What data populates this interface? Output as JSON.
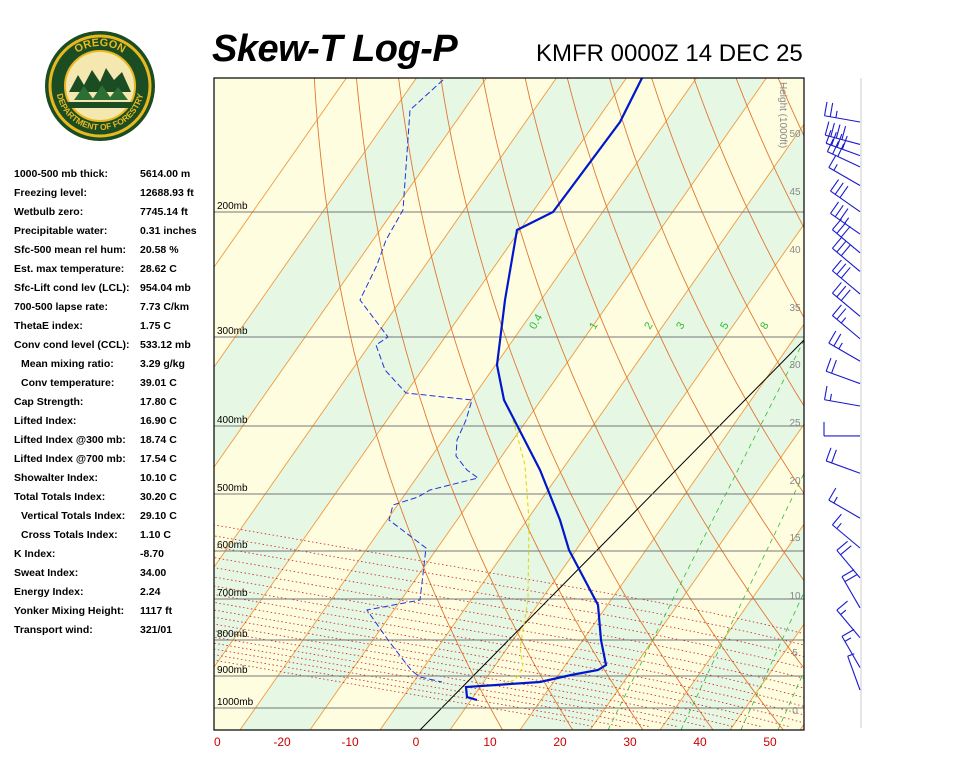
{
  "header": {
    "title": "Skew-T Log-P",
    "subtitle": "KMFR 0000Z 14 DEC 25"
  },
  "logo": {
    "text_top": "OREGON",
    "text_bottom": "DEPARTMENT OF FORESTRY"
  },
  "indices": [
    {
      "label": "1000-500 mb thick:",
      "value": "5614.00 m",
      "indent": false
    },
    {
      "label": "Freezing level:",
      "value": "12688.93 ft",
      "indent": false
    },
    {
      "label": "Wetbulb zero:",
      "value": "7745.14 ft",
      "indent": false
    },
    {
      "label": "Precipitable water:",
      "value": "0.31 inches",
      "indent": false
    },
    {
      "label": "Sfc-500 mean rel hum:",
      "value": "20.58 %",
      "indent": false
    },
    {
      "label": "Est. max temperature:",
      "value": "28.62 C",
      "indent": false
    },
    {
      "label": "Sfc-Lift cond lev (LCL):",
      "value": "954.04 mb",
      "indent": false
    },
    {
      "label": "700-500 lapse rate:",
      "value": "7.73 C/km",
      "indent": false
    },
    {
      "label": "ThetaE index:",
      "value": "1.75 C",
      "indent": false
    },
    {
      "label": "Conv cond level (CCL):",
      "value": "533.12 mb",
      "indent": false
    },
    {
      "label": "Mean mixing ratio:",
      "value": "3.29 g/kg",
      "indent": true
    },
    {
      "label": "Conv temperature:",
      "value": "39.01 C",
      "indent": true
    },
    {
      "label": "Cap Strength:",
      "value": "17.80 C",
      "indent": false
    },
    {
      "label": "Lifted Index:",
      "value": "16.90 C",
      "indent": false
    },
    {
      "label": "Lifted Index @300 mb:",
      "value": "18.74 C",
      "indent": false
    },
    {
      "label": "Lifted Index @700 mb:",
      "value": "17.54 C",
      "indent": false
    },
    {
      "label": "Showalter Index:",
      "value": "10.10 C",
      "indent": false
    },
    {
      "label": "Total Totals Index:",
      "value": "30.20 C",
      "indent": false
    },
    {
      "label": "Vertical Totals Index:",
      "value": "29.10 C",
      "indent": true
    },
    {
      "label": "Cross Totals Index:",
      "value": "1.10 C",
      "indent": true
    },
    {
      "label": "K Index:",
      "value": "-8.70",
      "indent": false
    },
    {
      "label": "Sweat Index:",
      "value": "34.00",
      "indent": false
    },
    {
      "label": "Energy Index:",
      "value": "2.24",
      "indent": false
    },
    {
      "label": "Yonker Mixing Height:",
      "value": "1117 ft",
      "indent": false
    },
    {
      "label": "Transport wind:",
      "value": "321/01",
      "indent": false
    }
  ],
  "chart_data": {
    "type": "line",
    "title": "Skew-T Log-P",
    "subtitle": "KMFR 0000Z 14 DEC 25",
    "xlabel": "",
    "ylabel": "",
    "x_ticks": [
      "0",
      "-20",
      "-10",
      "0",
      "10",
      "20",
      "30",
      "40",
      "50"
    ],
    "pressure_levels": [
      "200mb",
      "300mb",
      "400mb",
      "500mb",
      "600mb",
      "700mb",
      "800mb",
      "900mb",
      "1000mb"
    ],
    "height_axis_label": "Height (1000ft)",
    "height_ticks": [
      "50",
      "45",
      "40",
      "35",
      "30",
      "25",
      "20",
      "15",
      "10",
      "5",
      "0"
    ],
    "mixing_ratio_labels": [
      "0.4",
      "1",
      "2",
      "3",
      "5",
      "8"
    ],
    "colors": {
      "background_yellow": "#fffde0",
      "background_green": "#e6f7e4",
      "isotherm": "#f29a3a",
      "dry_adiabat": "#e07830",
      "moist_adiabat": "#cc2222",
      "mixing_ratio": "#33bb33",
      "temperature": "#0018cc",
      "dewpoint": "#2233dd",
      "parcel": "#dddd22",
      "isobar": "#777777",
      "axis_labels": "#cc0000",
      "wind_barb": "#1a1acc"
    },
    "series": [
      {
        "name": "",
        "role": "temperature",
        "points": [
          [
            -31,
            170
          ],
          [
            -40,
            200
          ],
          [
            -43,
            215
          ],
          [
            -40,
            300
          ],
          [
            -34,
            400
          ],
          [
            -28,
            500
          ],
          [
            -20,
            600
          ],
          [
            -12,
            700
          ],
          [
            -7,
            770
          ],
          [
            -3,
            850
          ],
          [
            -2,
            880
          ],
          [
            -5,
            900
          ],
          [
            -7,
            920
          ],
          [
            -14,
            935
          ],
          [
            -26,
            948
          ],
          [
            -26,
            965
          ]
        ]
      },
      {
        "name": "",
        "role": "dewpoint",
        "points": [
          [
            -70,
            170
          ],
          [
            -72,
            190
          ],
          [
            -70,
            220
          ],
          [
            -73,
            250
          ],
          [
            -64,
            270
          ],
          [
            -65,
            300
          ],
          [
            -67,
            320
          ],
          [
            -60,
            360
          ],
          [
            -50,
            400
          ],
          [
            -52,
            430
          ],
          [
            -44,
            450
          ],
          [
            -50,
            480
          ],
          [
            -58,
            500
          ],
          [
            -56,
            520
          ],
          [
            -50,
            560
          ],
          [
            -38,
            610
          ],
          [
            -38,
            680
          ],
          [
            -46,
            700
          ],
          [
            -40,
            760
          ],
          [
            -34,
            820
          ],
          [
            -30,
            880
          ],
          [
            -28,
            930
          ],
          [
            -24,
            955
          ]
        ]
      },
      {
        "name": "",
        "role": "parcel",
        "points": [
          [
            -29,
            400
          ],
          [
            -20,
            460
          ],
          [
            -16,
            550
          ],
          [
            -7,
            680
          ],
          [
            -2,
            800
          ],
          [
            -3,
            860
          ],
          [
            -8,
            910
          ],
          [
            -12,
            935
          ]
        ]
      }
    ],
    "wind_barbs": [
      {
        "pressure": 170,
        "direction": 280,
        "speed": 25
      },
      {
        "pressure": 200,
        "direction": 285,
        "speed": 40
      },
      {
        "pressure": 215,
        "direction": 290,
        "speed": 40
      },
      {
        "pressure": 230,
        "direction": 295,
        "speed": 30
      },
      {
        "pressure": 255,
        "direction": 300,
        "speed": 15
      },
      {
        "pressure": 290,
        "direction": 305,
        "speed": 30
      },
      {
        "pressure": 320,
        "direction": 305,
        "speed": 35
      },
      {
        "pressure": 345,
        "direction": 310,
        "speed": 30
      },
      {
        "pressure": 370,
        "direction": 310,
        "speed": 30
      },
      {
        "pressure": 400,
        "direction": 310,
        "speed": 30
      },
      {
        "pressure": 430,
        "direction": 310,
        "speed": 30
      },
      {
        "pressure": 460,
        "direction": 310,
        "speed": 25
      },
      {
        "pressure": 490,
        "direction": 300,
        "speed": 25
      },
      {
        "pressure": 520,
        "direction": 290,
        "speed": 20
      },
      {
        "pressure": 550,
        "direction": 280,
        "speed": 15
      },
      {
        "pressure": 590,
        "direction": 270,
        "speed": 10
      },
      {
        "pressure": 640,
        "direction": 290,
        "speed": 20
      },
      {
        "pressure": 700,
        "direction": 300,
        "speed": 15
      },
      {
        "pressure": 740,
        "direction": 310,
        "speed": 15
      },
      {
        "pressure": 780,
        "direction": 320,
        "speed": 20
      },
      {
        "pressure": 820,
        "direction": 330,
        "speed": 20
      },
      {
        "pressure": 860,
        "direction": 320,
        "speed": 15
      },
      {
        "pressure": 900,
        "direction": 330,
        "speed": 15
      },
      {
        "pressure": 930,
        "direction": 340,
        "speed": 5
      }
    ]
  }
}
